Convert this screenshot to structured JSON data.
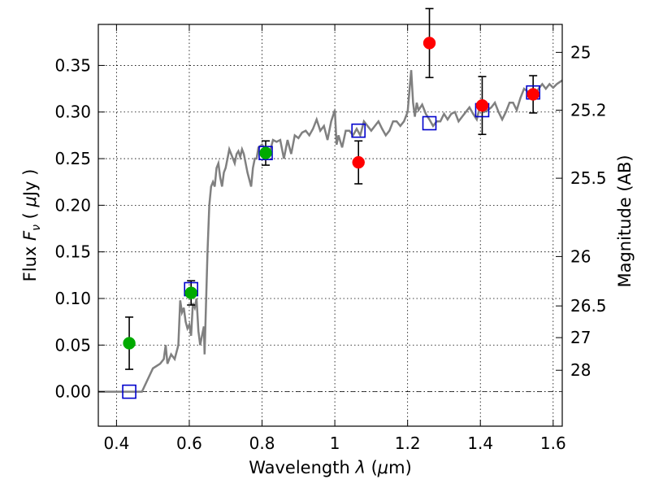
{
  "chart_data": {
    "type": "scatter",
    "xlabel": "Wavelength  λ (μm)",
    "ylabel": "Flux  F_ν  ( μJy )",
    "y2label": "Magnitude (AB)",
    "xlim": [
      0.35,
      1.625
    ],
    "ylim": [
      -0.037,
      0.394
    ],
    "x_ticks": [
      0.4,
      0.6,
      0.8,
      1.0,
      1.2,
      1.4,
      1.6
    ],
    "x_tick_labels": [
      "0.4",
      "0.6",
      "0.8",
      "1",
      "1.2",
      "1.4",
      "1.6"
    ],
    "y_ticks": [
      0.0,
      0.05,
      0.1,
      0.15,
      0.2,
      0.25,
      0.3,
      0.35
    ],
    "y_tick_labels": [
      "0.00",
      "0.05",
      "0.10",
      "0.15",
      "0.20",
      "0.25",
      "0.30",
      "0.35"
    ],
    "y2_ticks": [
      {
        "label": "25",
        "flux": 0.364
      },
      {
        "label": "25.2",
        "flux": 0.302
      },
      {
        "label": "25.5",
        "flux": 0.229
      },
      {
        "label": "26",
        "flux": 0.145
      },
      {
        "label": "26.5",
        "flux": 0.092
      },
      {
        "label": "27",
        "flux": 0.058
      },
      {
        "label": "28",
        "flux": 0.023
      }
    ],
    "grid": true,
    "zero_line": 0.0,
    "colors": {
      "template": "#808080",
      "model_points": "#0000cc",
      "green_points": "#00aa00",
      "red_points": "#ff0000",
      "errorbars": "#000000"
    },
    "series": [
      {
        "kind": "line",
        "x": [
          0.35,
          0.47,
          0.5,
          0.52,
          0.53,
          0.535,
          0.54,
          0.55,
          0.56,
          0.57,
          0.575,
          0.58,
          0.585,
          0.59,
          0.595,
          0.6,
          0.605,
          0.61,
          0.615,
          0.62,
          0.625,
          0.63,
          0.635,
          0.64,
          0.642,
          0.645,
          0.65,
          0.655,
          0.66,
          0.665,
          0.67,
          0.675,
          0.68,
          0.685,
          0.69,
          0.695,
          0.7,
          0.705,
          0.71,
          0.72,
          0.725,
          0.73,
          0.735,
          0.74,
          0.745,
          0.75,
          0.76,
          0.77,
          0.775,
          0.78,
          0.785,
          0.79,
          0.8,
          0.81,
          0.82,
          0.83,
          0.84,
          0.85,
          0.86,
          0.87,
          0.88,
          0.89,
          0.9,
          0.91,
          0.92,
          0.93,
          0.94,
          0.95,
          0.96,
          0.97,
          0.98,
          0.99,
          1.0,
          1.005,
          1.01,
          1.02,
          1.03,
          1.04,
          1.05,
          1.06,
          1.07,
          1.08,
          1.09,
          1.1,
          1.11,
          1.12,
          1.13,
          1.14,
          1.15,
          1.16,
          1.17,
          1.18,
          1.19,
          1.2,
          1.21,
          1.215,
          1.22,
          1.225,
          1.23,
          1.24,
          1.25,
          1.26,
          1.27,
          1.28,
          1.29,
          1.3,
          1.31,
          1.32,
          1.33,
          1.34,
          1.35,
          1.36,
          1.37,
          1.38,
          1.39,
          1.4,
          1.41,
          1.42,
          1.43,
          1.44,
          1.45,
          1.46,
          1.47,
          1.48,
          1.49,
          1.5,
          1.51,
          1.52,
          1.53,
          1.54,
          1.55,
          1.56,
          1.57,
          1.58,
          1.59,
          1.6,
          1.61,
          1.625
        ],
        "y": [
          0.0,
          0.0,
          0.025,
          0.03,
          0.035,
          0.05,
          0.03,
          0.04,
          0.035,
          0.05,
          0.098,
          0.085,
          0.09,
          0.075,
          0.068,
          0.072,
          0.06,
          0.095,
          0.09,
          0.1,
          0.065,
          0.05,
          0.06,
          0.07,
          0.04,
          0.08,
          0.15,
          0.2,
          0.22,
          0.225,
          0.22,
          0.24,
          0.245,
          0.23,
          0.22,
          0.235,
          0.24,
          0.25,
          0.26,
          0.25,
          0.245,
          0.255,
          0.258,
          0.252,
          0.26,
          0.255,
          0.235,
          0.22,
          0.24,
          0.25,
          0.25,
          0.262,
          0.265,
          0.26,
          0.255,
          0.27,
          0.268,
          0.27,
          0.25,
          0.27,
          0.255,
          0.275,
          0.272,
          0.278,
          0.28,
          0.275,
          0.282,
          0.292,
          0.28,
          0.285,
          0.27,
          0.29,
          0.302,
          0.265,
          0.275,
          0.262,
          0.28,
          0.28,
          0.275,
          0.282,
          0.275,
          0.29,
          0.285,
          0.28,
          0.285,
          0.29,
          0.282,
          0.275,
          0.28,
          0.29,
          0.29,
          0.285,
          0.29,
          0.3,
          0.345,
          0.31,
          0.295,
          0.31,
          0.302,
          0.308,
          0.298,
          0.292,
          0.285,
          0.29,
          0.29,
          0.298,
          0.292,
          0.298,
          0.3,
          0.29,
          0.295,
          0.3,
          0.305,
          0.298,
          0.292,
          0.308,
          0.3,
          0.302,
          0.305,
          0.31,
          0.3,
          0.292,
          0.3,
          0.31,
          0.31,
          0.302,
          0.315,
          0.325,
          0.322,
          0.318,
          0.318,
          0.325,
          0.33,
          0.325,
          0.33,
          0.326,
          0.33,
          0.334
        ],
        "color": "#808080"
      },
      {
        "kind": "open-square",
        "x": [
          0.435,
          0.605,
          0.81,
          1.065,
          1.26,
          1.405,
          1.545
        ],
        "y": [
          0.0,
          0.11,
          0.256,
          0.28,
          0.288,
          0.302,
          0.321
        ],
        "color": "#0000cc"
      },
      {
        "kind": "filled-circle",
        "x": [
          0.435,
          0.605,
          0.81
        ],
        "y": [
          0.052,
          0.106,
          0.256
        ],
        "err": [
          0.028,
          0.013,
          0.013
        ],
        "color": "#00aa00"
      },
      {
        "kind": "filled-circle",
        "x": [
          1.065,
          1.26,
          1.405,
          1.545
        ],
        "y": [
          0.246,
          0.374,
          0.307,
          0.319
        ],
        "err": [
          0.023,
          0.037,
          0.031,
          0.02
        ],
        "color": "#ff0000"
      }
    ]
  }
}
